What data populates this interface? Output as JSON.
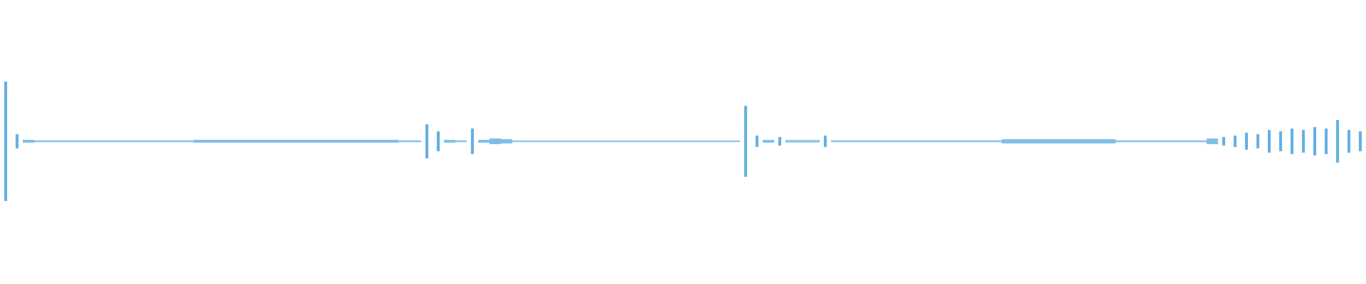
{
  "chart_data": {
    "type": "waveform",
    "color": "#5dade2",
    "values": [
      0.42,
      0.05,
      0.01,
      0.006,
      0.006,
      0.006,
      0.006,
      0.006,
      0.006,
      0.006,
      0.006,
      0.006,
      0.006,
      0.006,
      0.006,
      0.006,
      0.006,
      0.01,
      0.01,
      0.01,
      0.01,
      0.01,
      0.01,
      0.01,
      0.01,
      0.01,
      0.01,
      0.01,
      0.01,
      0.01,
      0.01,
      0.01,
      0.01,
      0.01,
      0.01,
      0.006,
      0.006,
      0.12,
      0.07,
      0.01,
      0.006,
      0.09,
      0.01,
      0.02,
      0.015,
      0.005,
      0.005,
      0.005,
      0.005,
      0.005,
      0.005,
      0.005,
      0.005,
      0.005,
      0.005,
      0.005,
      0.005,
      0.005,
      0.005,
      0.005,
      0.005,
      0.005,
      0.005,
      0.005,
      0.005,
      0.25,
      0.04,
      0.01,
      0.03,
      0.008,
      0.008,
      0.008,
      0.04,
      0.006,
      0.006,
      0.006,
      0.006,
      0.006,
      0.006,
      0.006,
      0.006,
      0.006,
      0.006,
      0.006,
      0.006,
      0.006,
      0.006,
      0.006,
      0.015,
      0.015,
      0.015,
      0.015,
      0.015,
      0.015,
      0.015,
      0.015,
      0.015,
      0.015,
      0.006,
      0.006,
      0.006,
      0.006,
      0.006,
      0.006,
      0.006,
      0.006,
      0.02,
      0.03,
      0.04,
      0.06,
      0.05,
      0.08,
      0.07,
      0.09,
      0.08,
      0.1,
      0.09,
      0.15,
      0.08,
      0.07
    ]
  }
}
